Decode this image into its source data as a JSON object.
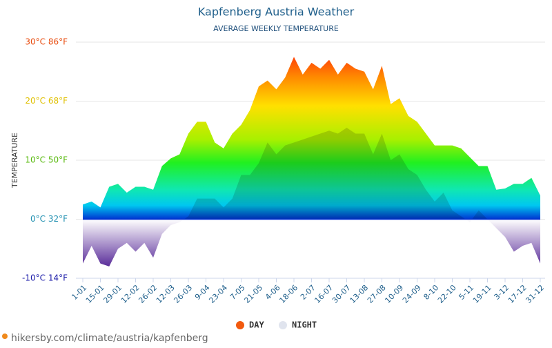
{
  "chart_data": {
    "type": "area",
    "title": "Kapfenberg Austria Weather",
    "subtitle": "AVERAGE WEEKLY TEMPERATURE",
    "y_label": "TEMPERATURE",
    "categories": [
      "1-01",
      null,
      "15-01",
      null,
      "29-01",
      null,
      "12-02",
      null,
      "26-02",
      null,
      "12-03",
      null,
      "26-03",
      null,
      "9-04",
      null,
      "23-04",
      null,
      "7-05",
      null,
      "21-05",
      null,
      "4-06",
      null,
      "18-06",
      null,
      "2-07",
      null,
      "16-07",
      null,
      "30-07",
      null,
      "13-08",
      null,
      "27-08",
      null,
      "10-09",
      null,
      "24-09",
      null,
      "8-10",
      null,
      "22-10",
      null,
      "5-11",
      null,
      "19-11",
      null,
      "3-12",
      null,
      "17-12",
      null,
      "31-12"
    ],
    "series": [
      {
        "name": "DAY",
        "color": "#f25a0e",
        "values": [
          2.5,
          3,
          2,
          5.5,
          6,
          4.5,
          5.5,
          5.5,
          5,
          9,
          10.3,
          11,
          14.5,
          16.5,
          16.5,
          13,
          12,
          14.5,
          16,
          18.5,
          22.5,
          23.5,
          22,
          24,
          27.5,
          24.5,
          26.5,
          25.5,
          27,
          24.5,
          26.5,
          25.5,
          25,
          22,
          26,
          19.5,
          20.5,
          17.5,
          16.5,
          14.5,
          12.5,
          12.5,
          12.5,
          12,
          10.5,
          9,
          9,
          5,
          5.2,
          6,
          6,
          7,
          4
        ]
      },
      {
        "name": "NIGHT",
        "color": "#e0e4ee",
        "values": [
          -7.5,
          -4.5,
          -7.5,
          -8,
          -5,
          -4,
          -5.5,
          -4,
          -6.5,
          -2.5,
          -1,
          -0.5,
          0.5,
          3.5,
          3.5,
          3.5,
          2,
          3.5,
          7.5,
          7.5,
          9.5,
          13,
          11,
          12.5,
          13,
          13.5,
          14,
          14.5,
          15,
          14.5,
          15.5,
          14.5,
          14.5,
          11,
          14.5,
          10,
          11,
          8.5,
          7.5,
          5,
          3,
          4.5,
          1.5,
          0.5,
          -0.5,
          1.5,
          0,
          -1.5,
          -3,
          -5.5,
          -4.5,
          -4,
          -7.5
        ]
      }
    ],
    "ylim": [
      -10,
      30
    ],
    "yticks": [
      {
        "value": -10,
        "label": "-10°C 14°F"
      },
      {
        "value": 0,
        "label": "0°C 32°F"
      },
      {
        "value": 10,
        "label": "10°C 50°F"
      },
      {
        "value": 20,
        "label": "20°C 68°F"
      },
      {
        "value": 30,
        "label": "30°C 86°F"
      }
    ],
    "ytick_colors": [
      "#1a1aa8",
      "#1f8fb0",
      "#55b80a",
      "#e0c000",
      "#e84a0c"
    ],
    "grid": true,
    "source": "hikersby.com/climate/austria/kapfenberg"
  }
}
